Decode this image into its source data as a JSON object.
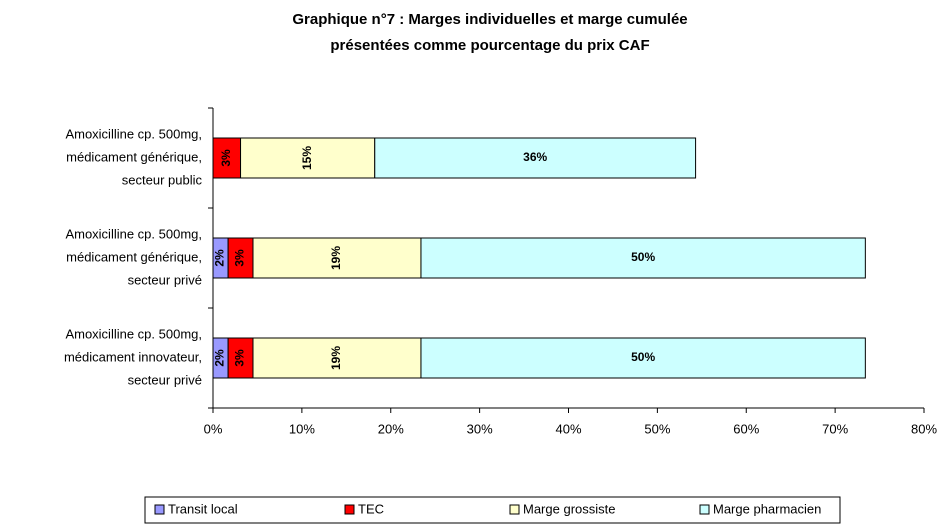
{
  "chart_data": {
    "type": "stacked-bar-horizontal",
    "title": [
      "Graphique n°7 : Marges individuelles et marge cumulée",
      "présentées comme pourcentage du prix CAF"
    ],
    "categories": [
      [
        "Amoxicilline cp. 500mg,",
        "médicament générique,",
        "secteur public"
      ],
      [
        "Amoxicilline cp. 500mg,",
        "médicament générique,",
        "secteur privé"
      ],
      [
        "Amoxicilline cp. 500mg,",
        "médicament innovateur,",
        "secteur privé"
      ]
    ],
    "series": [
      {
        "name": "Transit local",
        "color": "#9999ff",
        "values": [
          null,
          1.7,
          1.7
        ],
        "value_labels": [
          null,
          "2%",
          "2%"
        ]
      },
      {
        "name": "TEC",
        "color": "#ff0000",
        "values": [
          3.1,
          2.8,
          2.8
        ],
        "value_labels": [
          "3%",
          "3%",
          "3%"
        ]
      },
      {
        "name": "Marge grossiste",
        "color": "#ffffcc",
        "values": [
          15.1,
          18.9,
          18.9
        ],
        "value_labels": [
          "15%",
          "19%",
          "19%"
        ]
      },
      {
        "name": "Marge pharmacien",
        "color": "#ccffff",
        "values": [
          36.1,
          50,
          50
        ],
        "value_labels": [
          "36%",
          "50%",
          "50%"
        ]
      }
    ],
    "xlim": [
      0,
      80
    ],
    "xticks": [
      {
        "value": 0,
        "label": "0%"
      },
      {
        "value": 10,
        "label": "10%"
      },
      {
        "value": 20,
        "label": "20%"
      },
      {
        "value": 30,
        "label": "30%"
      },
      {
        "value": 40,
        "label": "40%"
      },
      {
        "value": 50,
        "label": "50%"
      },
      {
        "value": 60,
        "label": "60%"
      },
      {
        "value": 70,
        "label": "70%"
      },
      {
        "value": 80,
        "label": "80%"
      }
    ],
    "legend": "bottom"
  }
}
